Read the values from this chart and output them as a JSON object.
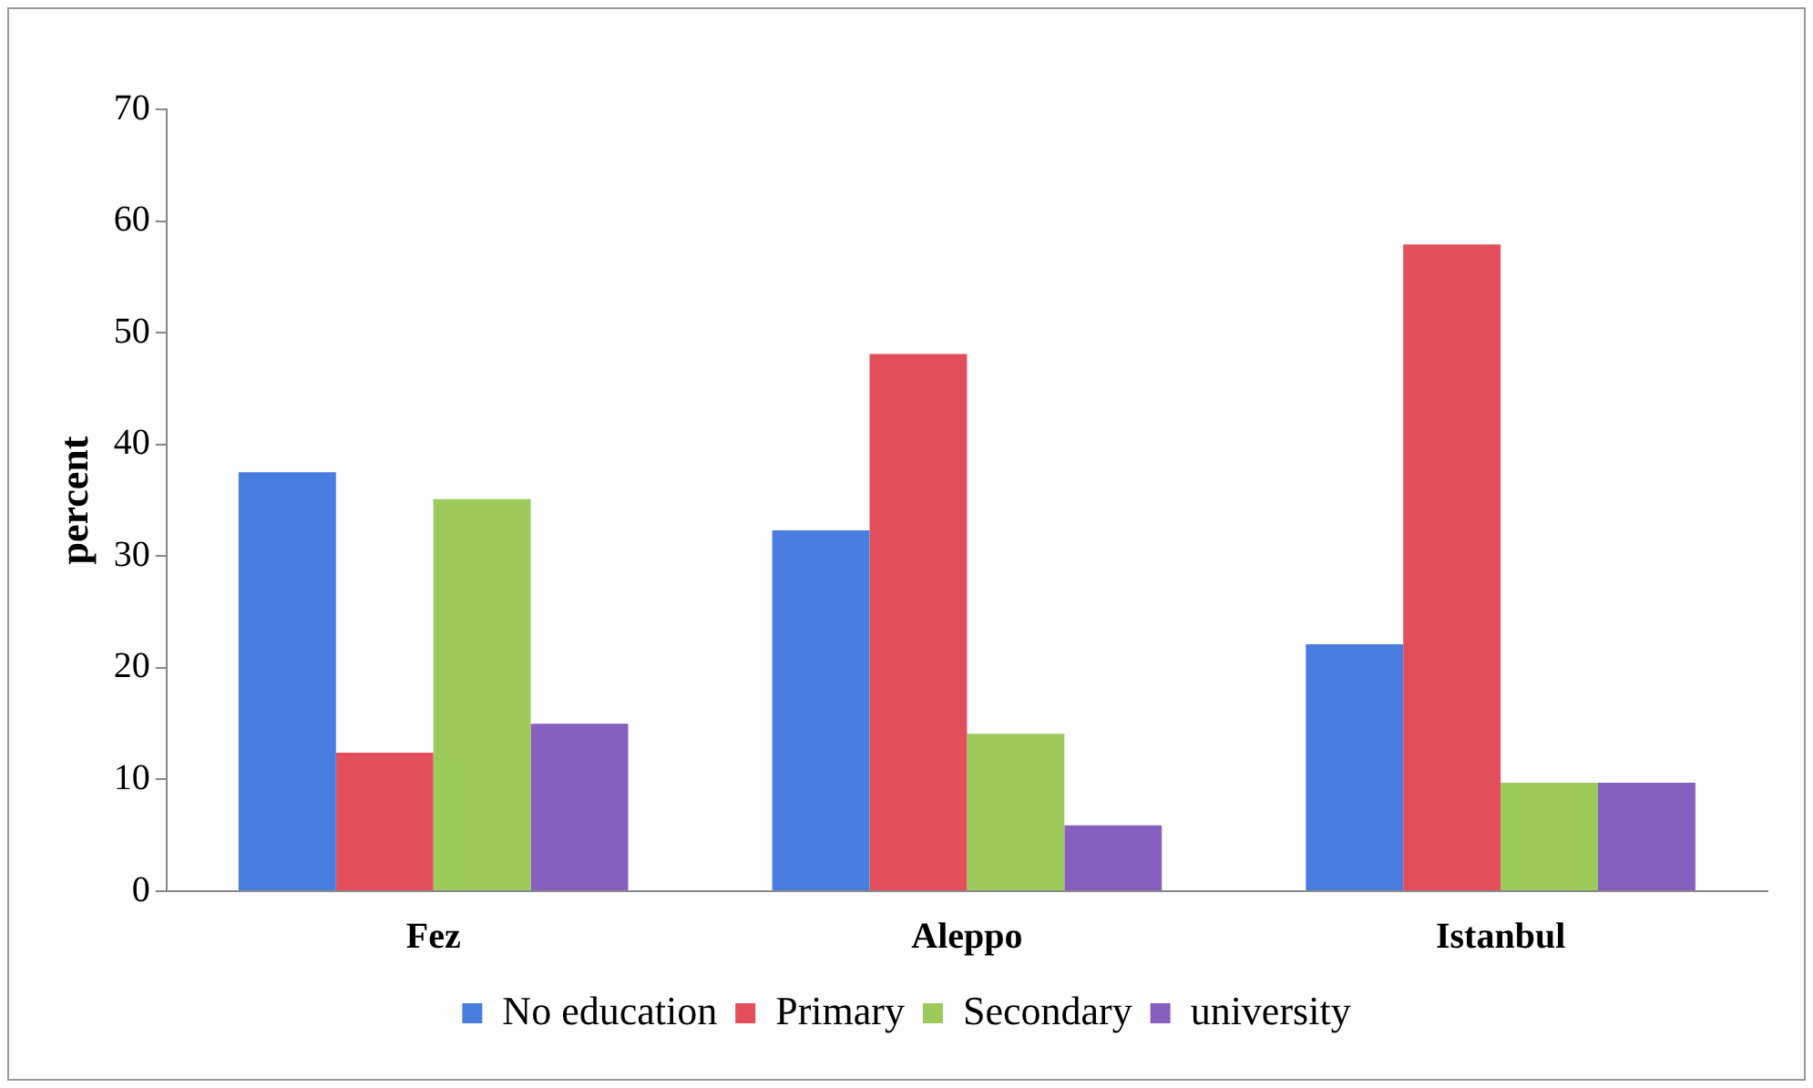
{
  "chart_data": {
    "type": "bar",
    "ylabel": "percent",
    "categories": [
      "Fez",
      "Aleppo",
      "Istanbul"
    ],
    "series": [
      {
        "name": "No education",
        "color": "#4a7de0",
        "values": [
          37.5,
          32.3,
          22.1
        ]
      },
      {
        "name": "Primary",
        "color": "#e24f5a",
        "values": [
          12.4,
          48.1,
          57.9
        ]
      },
      {
        "name": "Secondary",
        "color": "#9ccb5c",
        "values": [
          35.1,
          14.1,
          9.7
        ]
      },
      {
        "name": "university",
        "color": "#875fbf",
        "values": [
          15.0,
          5.9,
          9.7
        ]
      }
    ],
    "ylim": [
      0,
      70
    ],
    "yticks": [
      0,
      10,
      20,
      30,
      40,
      50,
      60,
      70
    ],
    "grid": false,
    "legend": "bottom"
  }
}
